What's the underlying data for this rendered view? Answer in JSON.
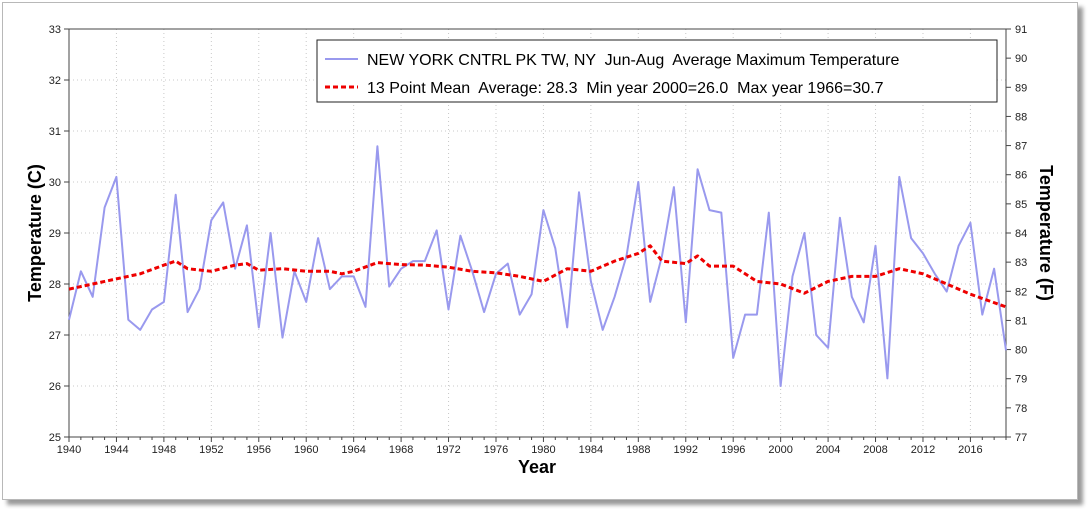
{
  "chart_data": {
    "type": "line",
    "x_axis": {
      "label": "Year",
      "range": [
        1940,
        2019
      ],
      "ticks": [
        1940,
        1944,
        1948,
        1952,
        1956,
        1960,
        1964,
        1968,
        1972,
        1976,
        1980,
        1984,
        1988,
        1992,
        1996,
        2000,
        2004,
        2008,
        2012,
        2016
      ]
    },
    "y_left": {
      "label": "Temperature (C)",
      "range": [
        25,
        33
      ],
      "ticks": [
        25,
        26,
        27,
        28,
        29,
        30,
        31,
        32,
        33
      ]
    },
    "y_right": {
      "label": "Temperature (F)",
      "range": [
        77,
        91
      ],
      "ticks": [
        77,
        78,
        79,
        80,
        81,
        82,
        83,
        84,
        85,
        86,
        87,
        88,
        89,
        90,
        91
      ]
    },
    "grid": true,
    "legend_position": "top-right",
    "series": [
      {
        "name": "NEW YORK CNTRL PK TW, NY  Jun-Aug  Average Maximum Temperature",
        "color": "#9999ee",
        "style": "solid",
        "x": [
          1940,
          1941,
          1942,
          1943,
          1944,
          1945,
          1946,
          1947,
          1948,
          1949,
          1950,
          1951,
          1952,
          1953,
          1954,
          1955,
          1956,
          1957,
          1958,
          1959,
          1960,
          1961,
          1962,
          1963,
          1964,
          1965,
          1966,
          1967,
          1968,
          1969,
          1970,
          1971,
          1972,
          1973,
          1974,
          1975,
          1976,
          1977,
          1978,
          1979,
          1980,
          1981,
          1982,
          1983,
          1984,
          1985,
          1986,
          1987,
          1988,
          1989,
          1990,
          1991,
          1992,
          1993,
          1994,
          1995,
          1996,
          1997,
          1998,
          1999,
          2000,
          2001,
          2002,
          2003,
          2004,
          2005,
          2006,
          2007,
          2008,
          2009,
          2010,
          2011,
          2012,
          2013,
          2014,
          2015,
          2016,
          2017,
          2018,
          2019
        ],
        "values": [
          27.3,
          28.25,
          27.75,
          29.5,
          30.1,
          27.3,
          27.1,
          27.5,
          27.65,
          29.75,
          27.45,
          27.9,
          29.25,
          29.6,
          28.3,
          29.15,
          27.15,
          29.0,
          26.95,
          28.25,
          27.65,
          28.9,
          27.9,
          28.15,
          28.15,
          27.55,
          30.7,
          27.95,
          28.3,
          28.45,
          28.45,
          29.05,
          27.5,
          28.95,
          28.25,
          27.45,
          28.2,
          28.4,
          27.4,
          27.8,
          29.45,
          28.7,
          27.15,
          29.8,
          28.05,
          27.1,
          27.75,
          28.55,
          30.0,
          27.65,
          28.55,
          29.9,
          27.25,
          30.25,
          29.45,
          29.4,
          26.55,
          27.4,
          27.4,
          29.4,
          26.0,
          28.15,
          29.0,
          27.0,
          26.75,
          29.3,
          27.75,
          27.25,
          28.75,
          26.15,
          30.1,
          28.9,
          28.6,
          28.2,
          27.85,
          28.75,
          29.2,
          27.4,
          28.3,
          26.7
        ]
      },
      {
        "name": "13 Point Mean  Average: 28.3  Min year 2000=26.0  Max year 1966=30.7",
        "color": "#ee0000",
        "style": "dashed",
        "x": [
          1940,
          1942,
          1944,
          1946,
          1948,
          1949,
          1950,
          1952,
          1954,
          1955,
          1956,
          1958,
          1960,
          1962,
          1963,
          1964,
          1966,
          1968,
          1970,
          1972,
          1974,
          1976,
          1978,
          1980,
          1982,
          1984,
          1986,
          1988,
          1989,
          1990,
          1992,
          1993,
          1994,
          1996,
          1998,
          2000,
          2002,
          2004,
          2006,
          2008,
          2010,
          2012,
          2014,
          2016,
          2019
        ],
        "values": [
          27.9,
          28.0,
          28.1,
          28.2,
          28.37,
          28.45,
          28.3,
          28.25,
          28.37,
          28.4,
          28.27,
          28.3,
          28.25,
          28.25,
          28.2,
          28.25,
          28.42,
          28.38,
          28.37,
          28.33,
          28.25,
          28.22,
          28.15,
          28.05,
          28.3,
          28.25,
          28.45,
          28.6,
          28.75,
          28.45,
          28.4,
          28.55,
          28.35,
          28.35,
          28.05,
          28.0,
          27.82,
          28.05,
          28.15,
          28.15,
          28.3,
          28.2,
          28.0,
          27.8,
          27.55
        ]
      }
    ]
  }
}
